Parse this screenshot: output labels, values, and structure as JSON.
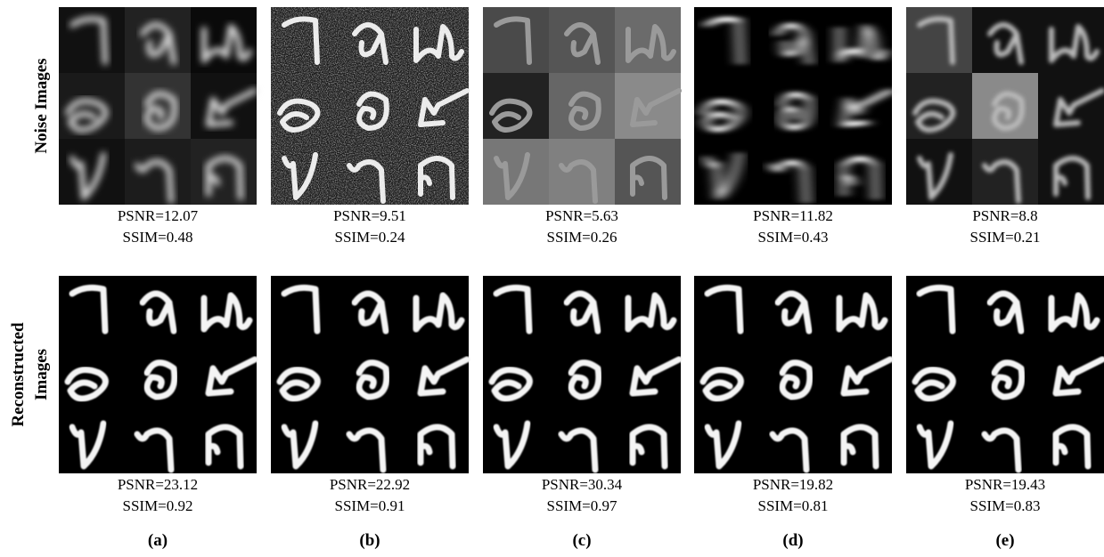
{
  "rows": [
    {
      "label": [
        "Noise Images"
      ],
      "panels": [
        {
          "psnr": "PSNR=12.07",
          "ssim": "SSIM=0.48"
        },
        {
          "psnr": "PSNR=9.51",
          "ssim": "SSIM=0.24"
        },
        {
          "psnr": "PSNR=5.63",
          "ssim": "SSIM=0.26"
        },
        {
          "psnr": "PSNR=11.82",
          "ssim": "SSIM=0.43"
        },
        {
          "psnr": "PSNR=8.8",
          "ssim": "SSIM=0.21"
        }
      ]
    },
    {
      "label": [
        "Reconstructed",
        "Images"
      ],
      "panels": [
        {
          "psnr": "PSNR=23.12",
          "ssim": "SSIM=0.92"
        },
        {
          "psnr": "PSNR=22.92",
          "ssim": "SSIM=0.91"
        },
        {
          "psnr": "PSNR=30.34",
          "ssim": "SSIM=0.97"
        },
        {
          "psnr": "PSNR=19.82",
          "ssim": "SSIM=0.81"
        },
        {
          "psnr": "PSNR=19.43",
          "ssim": "SSIM=0.83"
        }
      ]
    }
  ],
  "column_labels": [
    "(a)",
    "(b)",
    "(c)",
    "(d)",
    "(e)"
  ]
}
